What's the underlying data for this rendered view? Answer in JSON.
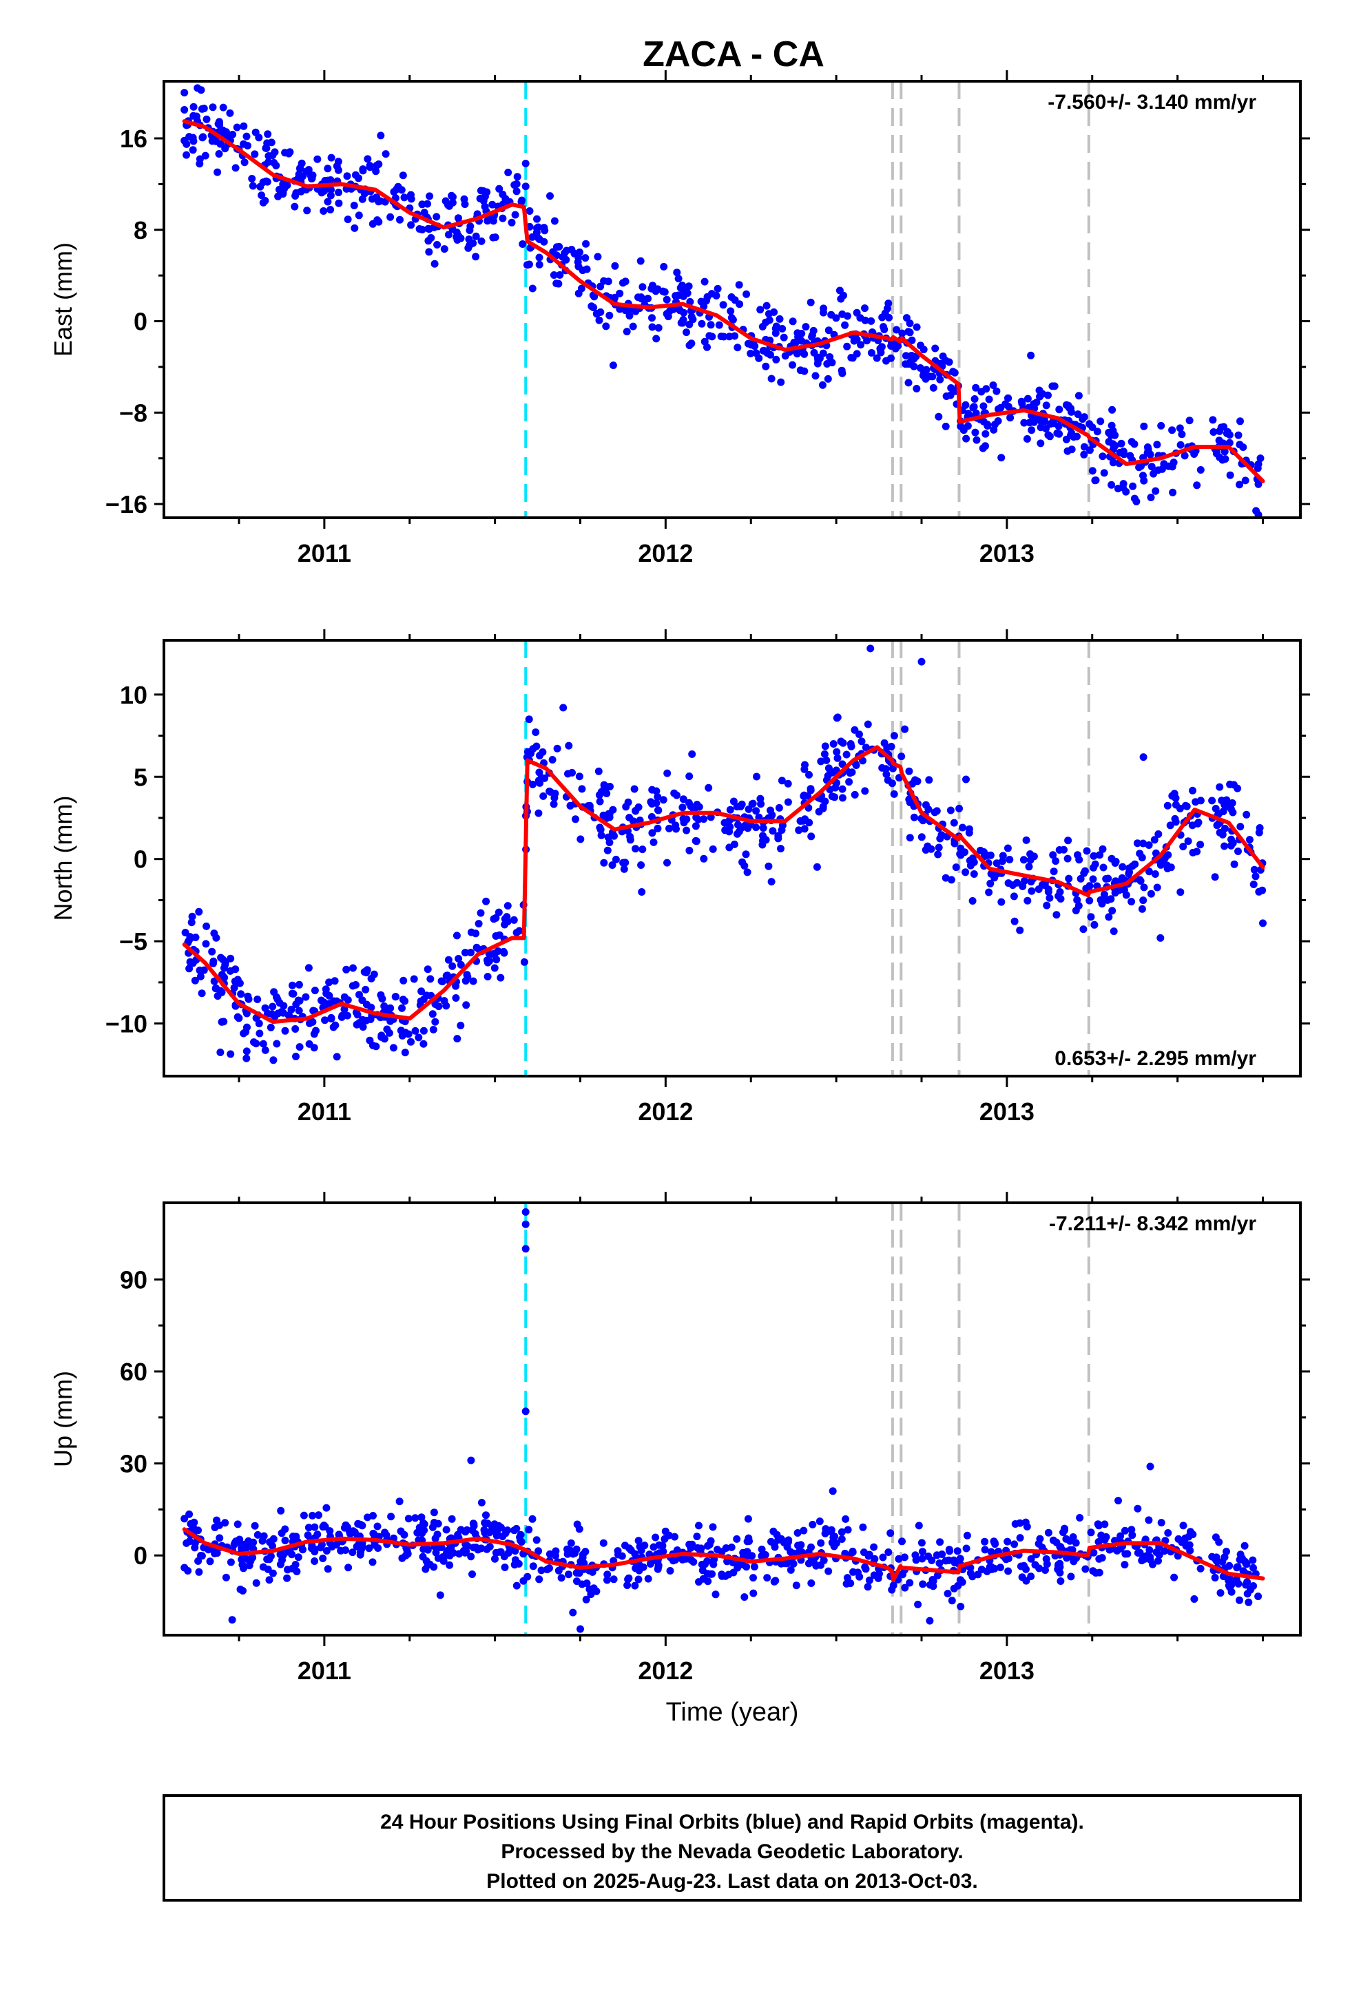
{
  "title": "ZACA - CA",
  "footer": {
    "lines": [
      "24 Hour Positions Using Final Orbits (blue) and Rapid Orbits (magenta).",
      "Processed by the Nevada Geodetic Laboratory.",
      "Plotted on 2025-Aug-23. Last data on 2013-Oct-03."
    ]
  },
  "colors": {
    "final_orbits": "#0000ff",
    "model_fit": "#ff0000",
    "antenna_change": "#00e5ff",
    "other_event": "#c0c0c0"
  },
  "chart_data": [
    {
      "type": "scatter",
      "name": "east",
      "ylabel": "East (mm)",
      "xlabel": "",
      "rate_text": "-7.560+/- 3.140 mm/yr",
      "rate_position": "top-right",
      "xlim": [
        2010.53,
        2013.86
      ],
      "ylim": [
        -17.2,
        21
      ],
      "yticks": [
        16,
        8,
        0,
        -8,
        -16
      ],
      "ytick_labels": [
        "16",
        "8",
        "0",
        "−8",
        "−16"
      ],
      "xticks": [
        2011,
        2012,
        2013
      ],
      "xtick_labels": [
        "2011",
        "2012",
        "2013"
      ],
      "grid": false,
      "events": [
        {
          "x": 2011.59,
          "kind": "antenna_change"
        },
        {
          "x": 2012.665,
          "kind": "other"
        },
        {
          "x": 2012.69,
          "kind": "other"
        },
        {
          "x": 2012.86,
          "kind": "other"
        },
        {
          "x": 2013.24,
          "kind": "other"
        }
      ],
      "model": {
        "x": [
          2010.59,
          2010.65,
          2010.75,
          2010.85,
          2010.95,
          2011.05,
          2011.15,
          2011.25,
          2011.35,
          2011.45,
          2011.55,
          2011.585,
          2011.595,
          2011.65,
          2011.75,
          2011.85,
          2011.95,
          2012.05,
          2012.15,
          2012.25,
          2012.35,
          2012.45,
          2012.55,
          2012.65,
          2012.663,
          2012.667,
          2012.688,
          2012.692,
          2012.75,
          2012.858,
          2012.862,
          2012.95,
          2013.05,
          2013.15,
          2013.238,
          2013.242,
          2013.35,
          2013.45,
          2013.55,
          2013.65,
          2013.75
        ],
        "y": [
          17.5,
          17.0,
          15.0,
          12.8,
          11.8,
          12.0,
          11.5,
          9.5,
          8.2,
          9.0,
          10.2,
          10.0,
          7.0,
          6.0,
          3.5,
          1.5,
          1.2,
          1.5,
          0.5,
          -1.5,
          -2.5,
          -2.0,
          -1.0,
          -1.5,
          -1.6,
          -1.4,
          -1.8,
          -1.5,
          -3.0,
          -5.5,
          -8.8,
          -8.2,
          -7.8,
          -8.5,
          -10.0,
          -10.2,
          -12.5,
          -12.0,
          -11.0,
          -11.0,
          -14.0
        ]
      },
      "trend": {
        "start": [
          2010.59,
          16.0
        ],
        "end": [
          2013.75,
          -13.5
        ]
      },
      "noise": 1.6,
      "n_points": 900,
      "outliers": [
        [
          2010.59,
          20.0
        ],
        [
          2010.59,
          18.5
        ],
        [
          2010.59,
          15.8
        ],
        [
          2011.59,
          13.8
        ],
        [
          2011.59,
          11.8
        ],
        [
          2013.07,
          -3.0
        ],
        [
          2013.73,
          -16.6
        ]
      ]
    },
    {
      "type": "scatter",
      "name": "north",
      "ylabel": "North (mm)",
      "xlabel": "",
      "rate_text": "0.653+/- 2.295 mm/yr",
      "rate_position": "bottom-right",
      "xlim": [
        2010.53,
        2013.86
      ],
      "ylim": [
        -13.2,
        13.3
      ],
      "yticks": [
        10,
        5,
        0,
        -5,
        -10
      ],
      "ytick_labels": [
        "10",
        "5",
        "0",
        "−5",
        "−10"
      ],
      "xticks": [
        2011,
        2012,
        2013
      ],
      "xtick_labels": [
        "2011",
        "2012",
        "2013"
      ],
      "grid": false,
      "events": [
        {
          "x": 2011.59,
          "kind": "antenna_change"
        },
        {
          "x": 2012.665,
          "kind": "other"
        },
        {
          "x": 2012.69,
          "kind": "other"
        },
        {
          "x": 2012.86,
          "kind": "other"
        },
        {
          "x": 2013.24,
          "kind": "other"
        }
      ],
      "model": {
        "x": [
          2010.59,
          2010.65,
          2010.75,
          2010.85,
          2010.95,
          2011.05,
          2011.15,
          2011.25,
          2011.35,
          2011.45,
          2011.55,
          2011.585,
          2011.595,
          2011.65,
          2011.75,
          2011.85,
          2011.95,
          2012.05,
          2012.15,
          2012.25,
          2012.35,
          2012.45,
          2012.55,
          2012.62,
          2012.663,
          2012.667,
          2012.688,
          2012.692,
          2012.75,
          2012.858,
          2012.862,
          2012.95,
          2013.05,
          2013.15,
          2013.238,
          2013.242,
          2013.35,
          2013.45,
          2013.55,
          2013.65,
          2013.75
        ],
        "y": [
          -5.2,
          -6.3,
          -8.8,
          -9.9,
          -9.7,
          -8.8,
          -9.4,
          -9.7,
          -8.0,
          -5.8,
          -4.8,
          -4.8,
          6.0,
          5.5,
          3.2,
          1.8,
          2.2,
          2.8,
          2.8,
          2.3,
          2.3,
          4.0,
          6.0,
          6.8,
          6.0,
          5.8,
          5.6,
          5.2,
          2.8,
          1.2,
          1.4,
          -0.6,
          -1.0,
          -1.4,
          -2.2,
          -2.0,
          -1.5,
          0.2,
          3.0,
          2.2,
          -0.5
        ]
      },
      "trend": {
        "start": [
          2010.59,
          -5.2
        ],
        "end": [
          2013.75,
          -0.5
        ]
      },
      "noise": 1.3,
      "n_points": 900,
      "outliers": [
        [
          2012.6,
          12.8
        ],
        [
          2012.75,
          12.0
        ],
        [
          2011.6,
          8.5
        ],
        [
          2011.7,
          9.2
        ],
        [
          2013.4,
          6.2
        ],
        [
          2011.93,
          -2.0
        ],
        [
          2013.45,
          -4.8
        ],
        [
          2013.75,
          -3.9
        ]
      ]
    },
    {
      "type": "scatter",
      "name": "up",
      "ylabel": "Up (mm)",
      "xlabel": "Time (year)",
      "rate_text": "-7.211+/- 8.342 mm/yr",
      "rate_position": "top-right",
      "xlim": [
        2010.53,
        2013.86
      ],
      "ylim": [
        -26,
        115
      ],
      "yticks": [
        90,
        60,
        30,
        0
      ],
      "ytick_labels": [
        "90",
        "60",
        "30",
        "0"
      ],
      "xticks": [
        2011,
        2012,
        2013
      ],
      "xtick_labels": [
        "2011",
        "2012",
        "2013"
      ],
      "grid": false,
      "events": [
        {
          "x": 2011.59,
          "kind": "antenna_change"
        },
        {
          "x": 2012.665,
          "kind": "other"
        },
        {
          "x": 2012.69,
          "kind": "other"
        },
        {
          "x": 2012.86,
          "kind": "other"
        },
        {
          "x": 2013.24,
          "kind": "other"
        }
      ],
      "model": {
        "x": [
          2010.59,
          2010.65,
          2010.75,
          2010.85,
          2010.95,
          2011.05,
          2011.15,
          2011.25,
          2011.35,
          2011.45,
          2011.55,
          2011.585,
          2011.595,
          2011.65,
          2011.75,
          2011.85,
          2011.95,
          2012.05,
          2012.15,
          2012.25,
          2012.35,
          2012.45,
          2012.55,
          2012.65,
          2012.663,
          2012.667,
          2012.688,
          2012.692,
          2012.75,
          2012.858,
          2012.862,
          2012.95,
          2013.05,
          2013.15,
          2013.238,
          2013.242,
          2013.35,
          2013.45,
          2013.55,
          2013.65,
          2013.75
        ],
        "y": [
          8.5,
          4.0,
          0.5,
          1.5,
          4.5,
          5.5,
          5.0,
          3.5,
          4.0,
          5.5,
          3.5,
          2.0,
          1.5,
          -2.0,
          -4.0,
          -3.0,
          -1.0,
          0.5,
          0.0,
          -2.0,
          -1.0,
          0.5,
          -1.0,
          -4.0,
          -5.0,
          -8.0,
          -3.5,
          -4.0,
          -4.5,
          -5.5,
          -3.5,
          -0.5,
          1.5,
          1.0,
          0.0,
          2.5,
          4.0,
          4.0,
          -1.0,
          -6.0,
          -7.5
        ]
      },
      "trend": {
        "start": [
          2010.59,
          4.0
        ],
        "end": [
          2013.75,
          -7.5
        ]
      },
      "noise": 5.0,
      "n_points": 900,
      "outliers": [
        [
          2011.59,
          112
        ],
        [
          2011.59,
          108
        ],
        [
          2011.59,
          100
        ],
        [
          2011.59,
          47
        ],
        [
          2011.43,
          31
        ],
        [
          2013.42,
          29
        ],
        [
          2012.49,
          21
        ],
        [
          2010.59,
          12
        ],
        [
          2010.59,
          -4
        ],
        [
          2010.6,
          -5
        ],
        [
          2010.73,
          -21
        ],
        [
          2011.75,
          -24
        ]
      ]
    }
  ]
}
